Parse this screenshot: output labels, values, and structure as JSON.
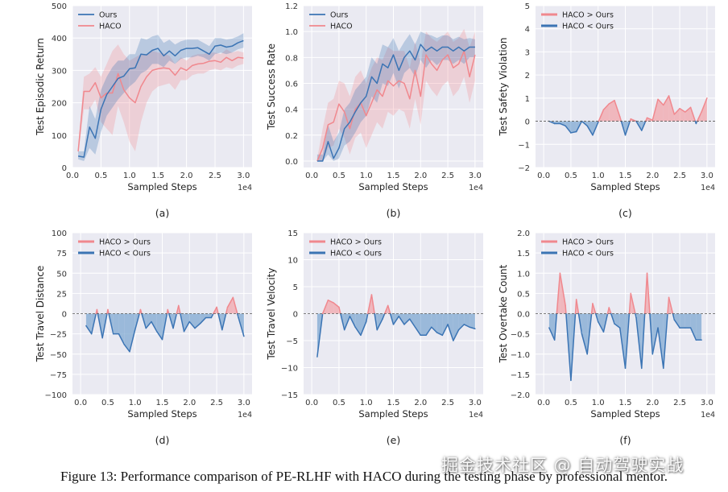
{
  "figure": {
    "caption": "Figure 13: Performance comparison of PE-RLHF with HACO during the testing phase by professional mentor.",
    "watermark": "掘金技术社区 @ 自动驾驶实战",
    "colors": {
      "ours": "#3b74b4",
      "haco": "#f0888e",
      "panel_bg": "#eaeaf2",
      "grid": "#ffffff",
      "pos_fill": "#f2a6ab",
      "neg_fill": "#7fa8d2"
    }
  },
  "chart_data": [
    {
      "id": "a",
      "type": "line",
      "panel_label": "(a)",
      "xlabel": "Sampled Steps",
      "ylabel": "Test Episodic Return",
      "x_offset_label": "1e4",
      "xlim": [
        0,
        3.15
      ],
      "ylim": [
        0,
        500
      ],
      "xticks": [
        0,
        0.5,
        1.0,
        1.5,
        2.0,
        2.5,
        3.0
      ],
      "xtick_labels": [
        "0.0",
        "0.5",
        "1.0",
        "1.5",
        "2.0",
        "2.5",
        "3.0"
      ],
      "yticks": [
        0,
        100,
        200,
        300,
        400,
        500
      ],
      "ytick_labels": [
        "0",
        "100",
        "200",
        "300",
        "400",
        "500"
      ],
      "legend": [
        "Ours",
        "HACO"
      ],
      "series": [
        {
          "name": "Ours",
          "x": [
            0.1,
            0.2,
            0.3,
            0.4,
            0.5,
            0.6,
            0.7,
            0.8,
            0.9,
            1.0,
            1.1,
            1.2,
            1.3,
            1.4,
            1.5,
            1.6,
            1.7,
            1.8,
            1.9,
            2.0,
            2.1,
            2.2,
            2.3,
            2.4,
            2.5,
            2.6,
            2.7,
            2.8,
            2.9,
            3.0
          ],
          "y": [
            35,
            32,
            125,
            90,
            180,
            225,
            250,
            275,
            282,
            305,
            308,
            350,
            348,
            362,
            368,
            345,
            360,
            345,
            362,
            368,
            368,
            370,
            360,
            350,
            375,
            378,
            372,
            375,
            385,
            392
          ],
          "lower": [
            25,
            20,
            60,
            40,
            110,
            160,
            185,
            210,
            230,
            250,
            265,
            290,
            300,
            320,
            320,
            310,
            330,
            320,
            335,
            340,
            340,
            345,
            340,
            330,
            350,
            355,
            350,
            355,
            365,
            370
          ],
          "upper": [
            50,
            50,
            190,
            150,
            240,
            280,
            310,
            330,
            330,
            350,
            350,
            400,
            395,
            405,
            410,
            385,
            395,
            380,
            390,
            395,
            395,
            395,
            385,
            375,
            400,
            400,
            395,
            398,
            405,
            415
          ]
        },
        {
          "name": "HACO",
          "x": [
            0.1,
            0.2,
            0.3,
            0.4,
            0.5,
            0.6,
            0.7,
            0.8,
            0.9,
            1.0,
            1.1,
            1.2,
            1.3,
            1.4,
            1.5,
            1.6,
            1.7,
            1.8,
            1.9,
            2.0,
            2.1,
            2.2,
            2.3,
            2.4,
            2.5,
            2.6,
            2.7,
            2.8,
            2.9,
            3.0
          ],
          "y": [
            50,
            235,
            235,
            262,
            215,
            230,
            230,
            290,
            240,
            215,
            200,
            250,
            280,
            300,
            305,
            308,
            305,
            285,
            308,
            300,
            315,
            320,
            322,
            328,
            330,
            325,
            340,
            330,
            340,
            338
          ],
          "lower": [
            40,
            180,
            180,
            210,
            140,
            120,
            100,
            190,
            140,
            80,
            50,
            140,
            200,
            235,
            250,
            255,
            260,
            240,
            270,
            270,
            285,
            290,
            290,
            300,
            305,
            300,
            310,
            305,
            315,
            320
          ],
          "upper": [
            60,
            280,
            290,
            310,
            280,
            320,
            360,
            380,
            350,
            330,
            340,
            350,
            350,
            360,
            355,
            352,
            345,
            320,
            340,
            330,
            345,
            350,
            350,
            355,
            355,
            350,
            365,
            355,
            360,
            355
          ]
        }
      ]
    },
    {
      "id": "b",
      "type": "line",
      "panel_label": "(b)",
      "xlabel": "Sampled Steps",
      "ylabel": "Test Success Rate",
      "x_offset_label": "1e4",
      "xlim": [
        -0.15,
        3.15
      ],
      "ylim": [
        -0.05,
        1.2
      ],
      "xticks": [
        0,
        0.5,
        1.0,
        1.5,
        2.0,
        2.5,
        3.0
      ],
      "xtick_labels": [
        "0.0",
        "0.5",
        "1.0",
        "1.5",
        "2.0",
        "2.5",
        "3.0"
      ],
      "yticks": [
        0,
        0.2,
        0.4,
        0.6,
        0.8,
        1.0,
        1.2
      ],
      "ytick_labels": [
        "0.0",
        "0.2",
        "0.4",
        "0.6",
        "0.8",
        "1.0",
        "1.2"
      ],
      "legend": [
        "Ours",
        "HACO"
      ],
      "series": [
        {
          "name": "Ours",
          "x": [
            0.1,
            0.2,
            0.3,
            0.4,
            0.5,
            0.6,
            0.7,
            0.8,
            0.9,
            1.0,
            1.1,
            1.2,
            1.3,
            1.4,
            1.5,
            1.6,
            1.7,
            1.8,
            1.9,
            2.0,
            2.1,
            2.2,
            2.3,
            2.4,
            2.5,
            2.6,
            2.7,
            2.8,
            2.9,
            3.0
          ],
          "y": [
            0.0,
            0.0,
            0.15,
            0.02,
            0.1,
            0.25,
            0.3,
            0.38,
            0.45,
            0.5,
            0.65,
            0.6,
            0.75,
            0.72,
            0.82,
            0.7,
            0.8,
            0.85,
            0.78,
            0.9,
            0.85,
            0.88,
            0.85,
            0.88,
            0.88,
            0.85,
            0.88,
            0.85,
            0.88,
            0.88
          ],
          "lower": [
            0.0,
            0.0,
            0.05,
            0.0,
            0.02,
            0.12,
            0.15,
            0.22,
            0.3,
            0.35,
            0.5,
            0.45,
            0.6,
            0.58,
            0.68,
            0.56,
            0.68,
            0.72,
            0.65,
            0.78,
            0.72,
            0.78,
            0.74,
            0.78,
            0.78,
            0.75,
            0.78,
            0.75,
            0.8,
            0.8
          ],
          "upper": [
            0.05,
            0.05,
            0.28,
            0.15,
            0.22,
            0.4,
            0.45,
            0.55,
            0.6,
            0.65,
            0.8,
            0.75,
            0.9,
            0.88,
            0.95,
            0.85,
            0.92,
            0.98,
            0.9,
            1.0,
            0.98,
            0.97,
            0.95,
            0.97,
            0.97,
            0.94,
            0.96,
            0.94,
            0.95,
            0.94
          ]
        },
        {
          "name": "HACO",
          "x": [
            0.1,
            0.2,
            0.3,
            0.4,
            0.5,
            0.6,
            0.7,
            0.8,
            0.9,
            1.0,
            1.1,
            1.2,
            1.3,
            1.4,
            1.5,
            1.6,
            1.7,
            1.8,
            1.9,
            2.0,
            2.1,
            2.2,
            2.3,
            2.4,
            2.5,
            2.6,
            2.7,
            2.8,
            2.9,
            3.0
          ],
          "y": [
            0.0,
            0.1,
            0.28,
            0.3,
            0.44,
            0.38,
            0.25,
            0.4,
            0.45,
            0.35,
            0.45,
            0.55,
            0.5,
            0.62,
            0.58,
            0.62,
            0.6,
            0.48,
            0.7,
            0.5,
            0.82,
            0.75,
            0.7,
            0.78,
            0.82,
            0.72,
            0.75,
            0.85,
            0.65,
            0.82
          ],
          "lower": [
            0.0,
            0.0,
            0.1,
            0.12,
            0.25,
            0.18,
            0.05,
            0.18,
            0.22,
            0.1,
            0.2,
            0.3,
            0.25,
            0.38,
            0.35,
            0.4,
            0.38,
            0.25,
            0.48,
            0.28,
            0.62,
            0.55,
            0.5,
            0.58,
            0.62,
            0.5,
            0.55,
            0.65,
            0.45,
            0.62
          ],
          "upper": [
            0.02,
            0.25,
            0.45,
            0.48,
            0.62,
            0.6,
            0.5,
            0.65,
            0.7,
            0.6,
            0.72,
            0.8,
            0.78,
            0.88,
            0.85,
            0.85,
            0.85,
            0.72,
            0.92,
            0.75,
            1.0,
            0.95,
            0.92,
            0.96,
            1.0,
            0.92,
            0.95,
            1.02,
            0.88,
            1.0
          ]
        }
      ]
    },
    {
      "id": "c",
      "type": "area",
      "panel_label": "(c)",
      "xlabel": "Sampled Steps",
      "ylabel": "Test Safety Violation",
      "x_offset_label": "1e4",
      "xlim": [
        -0.15,
        3.15
      ],
      "ylim": [
        -2,
        5
      ],
      "xticks": [
        0,
        0.5,
        1.0,
        1.5,
        2.0,
        2.5,
        3.0
      ],
      "xtick_labels": [
        "0.0",
        "0.5",
        "1.0",
        "1.5",
        "2.0",
        "2.5",
        "3.0"
      ],
      "yticks": [
        -2,
        -1,
        0,
        1,
        2,
        3,
        4,
        5
      ],
      "ytick_labels": [
        "−2",
        "−1",
        "0",
        "1",
        "2",
        "3",
        "4",
        "5"
      ],
      "legend": [
        "HACO > Ours",
        "HACO < Ours"
      ],
      "series": [
        {
          "name": "HACO - Ours",
          "x": [
            0.1,
            0.2,
            0.3,
            0.4,
            0.5,
            0.6,
            0.7,
            0.8,
            0.9,
            1.0,
            1.1,
            1.2,
            1.3,
            1.4,
            1.5,
            1.6,
            1.7,
            1.8,
            1.9,
            2.0,
            2.1,
            2.2,
            2.3,
            2.4,
            2.5,
            2.6,
            2.7,
            2.8,
            2.9,
            3.0
          ],
          "y": [
            0.0,
            -0.1,
            -0.1,
            -0.2,
            -0.5,
            -0.45,
            0.0,
            -0.2,
            -0.6,
            -0.05,
            0.5,
            0.75,
            0.9,
            0.2,
            -0.6,
            0.1,
            0.0,
            -0.4,
            0.15,
            0.05,
            0.95,
            0.7,
            1.1,
            0.3,
            0.55,
            0.4,
            0.6,
            -0.1,
            0.4,
            1.0
          ]
        }
      ]
    },
    {
      "id": "d",
      "type": "area",
      "panel_label": "(d)",
      "xlabel": "Sampled Steps",
      "ylabel": "Test Travel Distance",
      "x_offset_label": "1e4",
      "xlim": [
        -0.15,
        3.15
      ],
      "ylim": [
        -100,
        100
      ],
      "xticks": [
        0,
        0.5,
        1.0,
        1.5,
        2.0,
        2.5,
        3.0
      ],
      "xtick_labels": [
        "0.0",
        "0.5",
        "1.0",
        "1.5",
        "2.0",
        "2.5",
        "3.0"
      ],
      "yticks": [
        -100,
        -75,
        -50,
        -25,
        0,
        25,
        50,
        75,
        100
      ],
      "ytick_labels": [
        "−100",
        "−75",
        "−50",
        "−25",
        "0",
        "25",
        "50",
        "75",
        "100"
      ],
      "legend": [
        "HACO > Ours",
        "HACO < Ours"
      ],
      "series": [
        {
          "name": "HACO - Ours",
          "x": [
            0.1,
            0.2,
            0.3,
            0.4,
            0.5,
            0.6,
            0.7,
            0.8,
            0.9,
            1.0,
            1.1,
            1.2,
            1.3,
            1.4,
            1.5,
            1.6,
            1.7,
            1.8,
            1.9,
            2.0,
            2.1,
            2.2,
            2.3,
            2.4,
            2.5,
            2.6,
            2.7,
            2.8,
            2.9,
            3.0
          ],
          "y": [
            -15,
            -25,
            5,
            -30,
            5,
            -25,
            -25,
            -38,
            -47,
            -20,
            5,
            -18,
            -10,
            -22,
            -32,
            5,
            -18,
            10,
            -22,
            -10,
            -18,
            -12,
            -5,
            -5,
            8,
            -20,
            8,
            20,
            -5,
            -28
          ]
        }
      ]
    },
    {
      "id": "e",
      "type": "area",
      "panel_label": "(e)",
      "xlabel": "Sampled Steps",
      "ylabel": "Test Travel Velocity",
      "x_offset_label": "1e4",
      "xlim": [
        -0.15,
        3.15
      ],
      "ylim": [
        -15,
        15
      ],
      "xticks": [
        0,
        0.5,
        1.0,
        1.5,
        2.0,
        2.5,
        3.0
      ],
      "xtick_labels": [
        "0.0",
        "0.5",
        "1.0",
        "1.5",
        "2.0",
        "2.5",
        "3.0"
      ],
      "yticks": [
        -15,
        -10,
        -5,
        0,
        5,
        10,
        15
      ],
      "ytick_labels": [
        "−15",
        "−10",
        "−5",
        "0",
        "5",
        "10",
        "15"
      ],
      "legend": [
        "HACO > Ours",
        "HACO < Ours"
      ],
      "series": [
        {
          "name": "HACO - Ours",
          "x": [
            0.1,
            0.2,
            0.3,
            0.4,
            0.5,
            0.6,
            0.7,
            0.8,
            0.9,
            1.0,
            1.1,
            1.2,
            1.3,
            1.4,
            1.5,
            1.6,
            1.7,
            1.8,
            1.9,
            2.0,
            2.1,
            2.2,
            2.3,
            2.4,
            2.5,
            2.6,
            2.7,
            2.8,
            2.9,
            3.0
          ],
          "y": [
            -8,
            0,
            2.5,
            2,
            1.2,
            -3,
            -0.5,
            -2.5,
            -4,
            -1.5,
            3.5,
            -3,
            -1,
            1.5,
            -2,
            -0.5,
            -2,
            -1,
            -2.5,
            -4,
            -4,
            -2.5,
            -3.5,
            -4,
            -2,
            -5,
            -3,
            -2,
            -2.5,
            -2.8
          ]
        }
      ]
    },
    {
      "id": "f",
      "type": "area",
      "panel_label": "(f)",
      "xlabel": "Sampled Steps",
      "ylabel": "Test Overtake Count",
      "x_offset_label": "1e4",
      "xlim": [
        -0.15,
        3.15
      ],
      "ylim": [
        -2,
        2
      ],
      "xticks": [
        0,
        0.5,
        1.0,
        1.5,
        2.0,
        2.5,
        3.0
      ],
      "xtick_labels": [
        "0.0",
        "0.5",
        "1.0",
        "1.5",
        "2.0",
        "2.5",
        "3.0"
      ],
      "yticks": [
        -2,
        -1.5,
        -1,
        -0.5,
        0,
        0.5,
        1,
        1.5,
        2
      ],
      "ytick_labels": [
        "−2.0",
        "−1.5",
        "−1.0",
        "−0.5",
        "0.0",
        "0.5",
        "1.0",
        "1.5",
        "2.0"
      ],
      "legend": [
        "HACO > Ours",
        "HACO < Ours"
      ],
      "series": [
        {
          "name": "HACO - Ours",
          "x": [
            0.1,
            0.2,
            0.3,
            0.4,
            0.5,
            0.6,
            0.7,
            0.8,
            0.9,
            1.0,
            1.1,
            1.2,
            1.3,
            1.4,
            1.5,
            1.6,
            1.7,
            1.8,
            1.9,
            2.0,
            2.1,
            2.2,
            2.3,
            2.4,
            2.5,
            2.6,
            2.7,
            2.8,
            2.9
          ],
          "y": [
            -0.35,
            -0.65,
            1.0,
            0.2,
            -1.65,
            0.35,
            -0.5,
            -1.0,
            0.25,
            -0.2,
            -0.45,
            0.15,
            -0.25,
            -0.35,
            -1.35,
            0.5,
            -0.1,
            -1.35,
            1.0,
            -1.0,
            -0.35,
            -1.35,
            0.4,
            -0.15,
            -0.35,
            -0.35,
            -0.35,
            -0.65,
            -0.65
          ]
        }
      ]
    }
  ]
}
